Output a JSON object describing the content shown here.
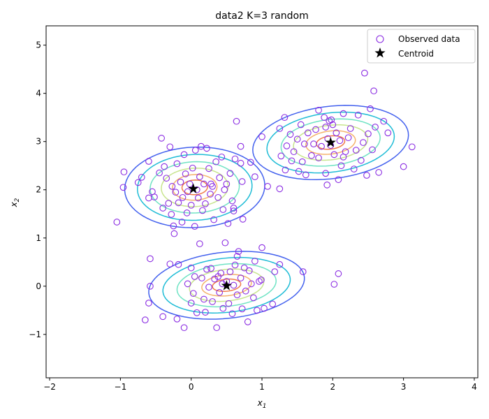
{
  "chart_data": {
    "type": "scatter",
    "title": "data2 K=3 random",
    "xlabel": "x",
    "xlabel_sub": "1",
    "ylabel": "x",
    "ylabel_sub": "2",
    "xlim": [
      -2.05,
      4.05
    ],
    "ylim": [
      -1.9,
      5.4
    ],
    "xticks": [
      -2,
      -1,
      0,
      1,
      2,
      3,
      4
    ],
    "yticks": [
      -1,
      0,
      1,
      2,
      3,
      4,
      5
    ],
    "grid": false,
    "legend_position": "top-right",
    "legend": [
      {
        "label": "Observed data",
        "marker": "open-circle"
      },
      {
        "label": "Centroid",
        "marker": "star"
      }
    ],
    "colors": {
      "observed_edge": "#8a2be2",
      "centroid": "#000000",
      "contour_levels": [
        "#4361ee",
        "#1fbcd6",
        "#6fe3c4",
        "#c8e58e",
        "#f5b26b",
        "#f07a49"
      ]
    },
    "centroids": [
      {
        "x": 0.03,
        "y": 2.02
      },
      {
        "x": 1.97,
        "y": 2.98
      },
      {
        "x": 0.5,
        "y": 0.01
      }
    ],
    "gaussians": [
      {
        "mean": [
          0.05,
          2.05
        ],
        "sx": 0.45,
        "sy": 0.38,
        "rho": 0.05
      },
      {
        "mean": [
          1.97,
          2.98
        ],
        "sx": 0.5,
        "sy": 0.35,
        "rho": 0.2
      },
      {
        "mean": [
          0.5,
          0.02
        ],
        "sx": 0.5,
        "sy": 0.32,
        "rho": 0.2
      }
    ],
    "contour_radii": [
      2.2,
      1.8,
      1.4,
      1.05,
      0.7,
      0.4
    ],
    "points": [
      [
        -0.95,
        2.37
      ],
      [
        -0.96,
        2.05
      ],
      [
        -0.7,
        2.26
      ],
      [
        -0.75,
        2.15
      ],
      [
        -0.6,
        2.59
      ],
      [
        -0.6,
        1.83
      ],
      [
        -0.55,
        1.96
      ],
      [
        -0.52,
        1.85
      ],
      [
        -0.45,
        2.35
      ],
      [
        -0.42,
        3.07
      ],
      [
        -0.4,
        1.62
      ],
      [
        -0.38,
        2.48
      ],
      [
        -0.35,
        2.24
      ],
      [
        -0.32,
        1.72
      ],
      [
        -0.3,
        2.89
      ],
      [
        -0.28,
        1.49
      ],
      [
        -0.27,
        2.07
      ],
      [
        -0.25,
        1.25
      ],
      [
        -0.24,
        1.09
      ],
      [
        -0.22,
        1.95
      ],
      [
        -0.2,
        2.54
      ],
      [
        -0.18,
        1.73
      ],
      [
        -0.15,
        2.16
      ],
      [
        -0.13,
        1.33
      ],
      [
        -0.12,
        1.84
      ],
      [
        -0.1,
        2.73
      ],
      [
        -0.08,
        2.33
      ],
      [
        -0.06,
        1.52
      ],
      [
        -0.05,
        1.96
      ],
      [
        -0.02,
        2.12
      ],
      [
        0.0,
        1.68
      ],
      [
        0.02,
        2.45
      ],
      [
        0.05,
        1.24
      ],
      [
        0.06,
        2.82
      ],
      [
        0.08,
        2.0
      ],
      [
        0.1,
        1.83
      ],
      [
        0.12,
        2.27
      ],
      [
        0.14,
        2.9
      ],
      [
        0.16,
        1.57
      ],
      [
        0.18,
        2.12
      ],
      [
        0.2,
        1.71
      ],
      [
        0.22,
        2.86
      ],
      [
        0.25,
        2.44
      ],
      [
        0.27,
        1.91
      ],
      [
        0.3,
        2.07
      ],
      [
        0.32,
        1.38
      ],
      [
        0.35,
        2.58
      ],
      [
        0.38,
        1.84
      ],
      [
        0.4,
        2.25
      ],
      [
        0.43,
        2.68
      ],
      [
        0.45,
        1.59
      ],
      [
        0.47,
        2.0
      ],
      [
        0.5,
        2.12
      ],
      [
        0.52,
        1.3
      ],
      [
        0.55,
        2.34
      ],
      [
        0.58,
        1.77
      ],
      [
        0.6,
        1.56
      ],
      [
        0.62,
        2.64
      ],
      [
        0.64,
        3.42
      ],
      [
        0.7,
        2.9
      ],
      [
        0.72,
        2.17
      ],
      [
        0.73,
        1.39
      ],
      [
        0.84,
        2.57
      ],
      [
        0.9,
        2.27
      ],
      [
        -1.05,
        1.33
      ],
      [
        0.6,
        1.62
      ],
      [
        0.7,
        2.55
      ],
      [
        0.28,
        2.12
      ],
      [
        1.0,
        3.1
      ],
      [
        1.08,
        2.07
      ],
      [
        1.25,
        2.02
      ],
      [
        1.27,
        2.7
      ],
      [
        1.25,
        3.27
      ],
      [
        1.32,
        3.5
      ],
      [
        1.33,
        2.41
      ],
      [
        1.35,
        2.91
      ],
      [
        1.4,
        3.15
      ],
      [
        1.42,
        2.6
      ],
      [
        1.45,
        2.79
      ],
      [
        1.5,
        3.05
      ],
      [
        1.52,
        2.38
      ],
      [
        1.55,
        3.35
      ],
      [
        1.57,
        2.58
      ],
      [
        1.6,
        2.95
      ],
      [
        1.62,
        2.31
      ],
      [
        1.65,
        3.18
      ],
      [
        1.7,
        2.71
      ],
      [
        1.73,
        2.95
      ],
      [
        1.76,
        3.25
      ],
      [
        1.8,
        2.66
      ],
      [
        1.8,
        3.65
      ],
      [
        1.84,
        2.9
      ],
      [
        1.88,
        3.5
      ],
      [
        1.9,
        2.34
      ],
      [
        1.92,
        2.1
      ],
      [
        1.93,
        3.06
      ],
      [
        1.95,
        3.43
      ],
      [
        1.97,
        2.92
      ],
      [
        2.0,
        3.35
      ],
      [
        2.02,
        2.73
      ],
      [
        2.05,
        3.18
      ],
      [
        2.08,
        2.21
      ],
      [
        2.1,
        3.02
      ],
      [
        2.12,
        2.5
      ],
      [
        2.15,
        3.58
      ],
      [
        2.18,
        2.79
      ],
      [
        2.22,
        3.08
      ],
      [
        2.25,
        3.27
      ],
      [
        2.3,
        2.43
      ],
      [
        2.33,
        2.82
      ],
      [
        2.36,
        3.55
      ],
      [
        2.4,
        2.61
      ],
      [
        2.43,
        2.98
      ],
      [
        2.45,
        4.42
      ],
      [
        2.48,
        2.3
      ],
      [
        2.5,
        3.16
      ],
      [
        2.53,
        3.68
      ],
      [
        2.56,
        2.83
      ],
      [
        2.58,
        4.05
      ],
      [
        2.6,
        3.3
      ],
      [
        2.65,
        2.36
      ],
      [
        2.72,
        3.42
      ],
      [
        2.78,
        3.18
      ],
      [
        3.0,
        2.48
      ],
      [
        3.12,
        2.89
      ],
      [
        1.98,
        3.45
      ],
      [
        2.15,
        2.68
      ],
      [
        1.9,
        3.3
      ],
      [
        -0.65,
        -0.7
      ],
      [
        -0.6,
        -0.35
      ],
      [
        -0.58,
        0.0
      ],
      [
        -0.58,
        0.57
      ],
      [
        -0.4,
        -0.63
      ],
      [
        -0.3,
        0.46
      ],
      [
        -0.2,
        -0.68
      ],
      [
        -0.18,
        0.45
      ],
      [
        -0.1,
        -0.86
      ],
      [
        -0.05,
        0.05
      ],
      [
        0.0,
        0.38
      ],
      [
        0.03,
        -0.15
      ],
      [
        0.05,
        0.2
      ],
      [
        0.08,
        -0.55
      ],
      [
        0.12,
        0.88
      ],
      [
        0.15,
        0.17
      ],
      [
        0.18,
        -0.27
      ],
      [
        0.2,
        -0.54
      ],
      [
        0.22,
        0.35
      ],
      [
        0.25,
        -0.02
      ],
      [
        0.28,
        0.37
      ],
      [
        0.3,
        -0.32
      ],
      [
        0.33,
        0.15
      ],
      [
        0.36,
        -0.86
      ],
      [
        0.38,
        0.2
      ],
      [
        0.4,
        -0.13
      ],
      [
        0.42,
        0.27
      ],
      [
        0.45,
        -0.46
      ],
      [
        0.48,
        0.9
      ],
      [
        0.5,
        0.1
      ],
      [
        0.53,
        -0.36
      ],
      [
        0.55,
        0.3
      ],
      [
        0.58,
        -0.57
      ],
      [
        0.6,
        0.02
      ],
      [
        0.62,
        0.44
      ],
      [
        0.65,
        -0.18
      ],
      [
        0.67,
        0.72
      ],
      [
        0.7,
        0.17
      ],
      [
        0.72,
        -0.47
      ],
      [
        0.75,
        0.38
      ],
      [
        0.77,
        -0.1
      ],
      [
        0.8,
        -0.74
      ],
      [
        0.82,
        0.32
      ],
      [
        0.85,
        0.05
      ],
      [
        0.88,
        -0.24
      ],
      [
        0.9,
        0.52
      ],
      [
        0.93,
        -0.5
      ],
      [
        0.96,
        0.1
      ],
      [
        0.99,
        0.13
      ],
      [
        1.0,
        0.8
      ],
      [
        1.03,
        -0.46
      ],
      [
        1.15,
        -0.37
      ],
      [
        1.18,
        0.3
      ],
      [
        1.25,
        0.45
      ],
      [
        1.58,
        0.3
      ],
      [
        2.02,
        0.04
      ],
      [
        2.08,
        0.26
      ],
      [
        0.0,
        -0.35
      ],
      [
        0.65,
        0.62
      ],
      [
        0.44,
        0.05
      ]
    ]
  }
}
